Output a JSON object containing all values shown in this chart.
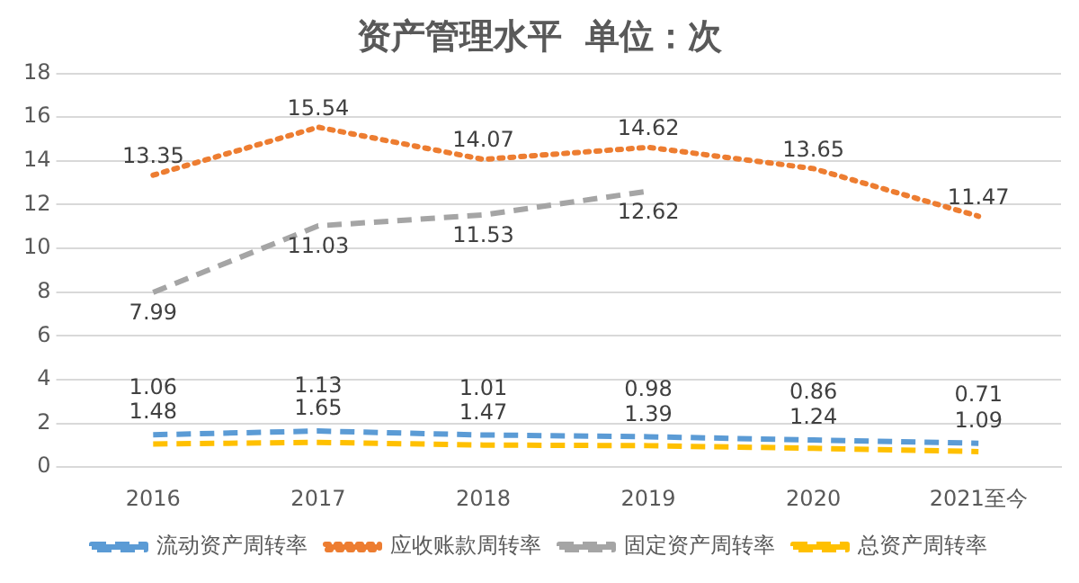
{
  "chart_data": {
    "type": "line",
    "title": "资产管理水平  单位：次",
    "categories": [
      "2016",
      "2017",
      "2018",
      "2019",
      "2020",
      "2021至今"
    ],
    "series": [
      {
        "name": "流动资产周转率",
        "color": "#5b9bd5",
        "line_style": "dashed",
        "values": [
          1.48,
          1.65,
          1.47,
          1.39,
          1.24,
          1.09
        ]
      },
      {
        "name": "应收账款周转率",
        "color": "#ed7d31",
        "line_style": "dotted",
        "values": [
          13.35,
          15.54,
          14.07,
          14.62,
          13.65,
          11.47
        ]
      },
      {
        "name": "固定资产周转率",
        "color": "#a5a5a5",
        "line_style": "dashed",
        "values": [
          7.99,
          11.03,
          11.53,
          12.62,
          null,
          null
        ]
      },
      {
        "name": "总资产周转率",
        "color": "#ffc000",
        "line_style": "dashed",
        "values": [
          1.06,
          1.13,
          1.01,
          0.98,
          0.86,
          0.71
        ]
      }
    ],
    "ylim": [
      0,
      18
    ],
    "yticks": [
      0,
      2,
      4,
      6,
      8,
      10,
      12,
      14,
      16,
      18
    ],
    "grid": "y",
    "legend": "bottom",
    "marker": "none",
    "data_labels": true
  }
}
